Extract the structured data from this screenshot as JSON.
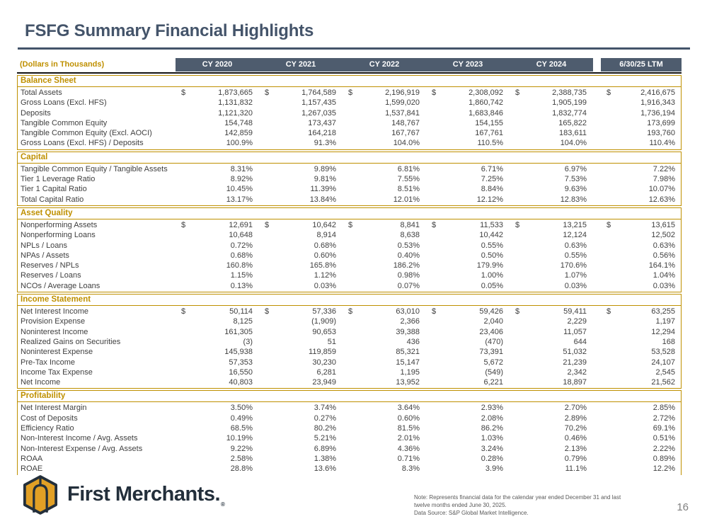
{
  "page": {
    "title": "FSFG Summary Financial Highlights",
    "page_number": "16"
  },
  "colors": {
    "title-navy": "#44546A",
    "accent-gold": "#BF9000",
    "header-slate": "#4E5C6E",
    "body-text": "#3F3F3F",
    "logo-navy": "#232F3B",
    "logo-gold": "#E2A025"
  },
  "table": {
    "corner_label": "(Dollars in Thousands)",
    "currency_symbol": "$",
    "columns": [
      "CY 2020",
      "CY 2021",
      "CY 2022",
      "CY 2023",
      "CY 2024",
      "6/30/25 LTM"
    ],
    "sections": [
      {
        "title": "Balance Sheet",
        "rows": [
          {
            "label": "Total Assets",
            "dollar": true,
            "values": [
              "1,873,665",
              "1,764,589",
              "2,196,919",
              "2,308,092",
              "2,388,735",
              "2,416,675"
            ]
          },
          {
            "label": "Gross Loans (Excl. HFS)",
            "values": [
              "1,131,832",
              "1,157,435",
              "1,599,020",
              "1,860,742",
              "1,905,199",
              "1,916,343"
            ]
          },
          {
            "label": "Deposits",
            "values": [
              "1,121,320",
              "1,267,035",
              "1,537,841",
              "1,683,846",
              "1,832,774",
              "1,736,194"
            ]
          },
          {
            "label": "Tangible Common Equity",
            "values": [
              "154,748",
              "173,437",
              "148,767",
              "154,155",
              "165,822",
              "173,699"
            ]
          },
          {
            "label": "Tangible Common Equity (Excl. AOCI)",
            "values": [
              "142,859",
              "164,218",
              "167,767",
              "167,761",
              "183,611",
              "193,760"
            ]
          },
          {
            "label": "Gross Loans (Excl. HFS) / Deposits",
            "values": [
              "100.9%",
              "91.3%",
              "104.0%",
              "110.5%",
              "104.0%",
              "110.4%"
            ]
          }
        ]
      },
      {
        "title": "Capital",
        "rows": [
          {
            "label": "Tangible Common Equity / Tangible Assets",
            "values": [
              "8.31%",
              "9.89%",
              "6.81%",
              "6.71%",
              "6.97%",
              "7.22%"
            ]
          },
          {
            "label": "Tier 1 Leverage Ratio",
            "values": [
              "8.92%",
              "9.81%",
              "7.55%",
              "7.25%",
              "7.53%",
              "7.98%"
            ]
          },
          {
            "label": "Tier 1 Capital Ratio",
            "values": [
              "10.45%",
              "11.39%",
              "8.51%",
              "8.84%",
              "9.63%",
              "10.07%"
            ]
          },
          {
            "label": "Total Capital Ratio",
            "values": [
              "13.17%",
              "13.84%",
              "12.01%",
              "12.12%",
              "12.83%",
              "12.63%"
            ]
          }
        ]
      },
      {
        "title": "Asset Quality",
        "rows": [
          {
            "label": "Nonperforming Assets",
            "dollar": true,
            "values": [
              "12,691",
              "10,642",
              "8,841",
              "11,533",
              "13,215",
              "13,615"
            ]
          },
          {
            "label": "Nonperforming Loans",
            "values": [
              "10,648",
              "8,914",
              "8,638",
              "10,442",
              "12,124",
              "12,502"
            ]
          },
          {
            "label": "NPLs / Loans",
            "values": [
              "0.72%",
              "0.68%",
              "0.53%",
              "0.55%",
              "0.63%",
              "0.63%"
            ]
          },
          {
            "label": "NPAs / Assets",
            "values": [
              "0.68%",
              "0.60%",
              "0.40%",
              "0.50%",
              "0.55%",
              "0.56%"
            ]
          },
          {
            "label": "Reserves / NPLs",
            "values": [
              "160.8%",
              "165.8%",
              "186.2%",
              "179.9%",
              "170.6%",
              "164.1%"
            ]
          },
          {
            "label": "Reserves / Loans",
            "values": [
              "1.15%",
              "1.12%",
              "0.98%",
              "1.00%",
              "1.07%",
              "1.04%"
            ]
          },
          {
            "label": "NCOs / Average Loans",
            "values": [
              "0.13%",
              "0.03%",
              "0.07%",
              "0.05%",
              "0.03%",
              "0.03%"
            ]
          }
        ]
      },
      {
        "title": "Income Statement",
        "rows": [
          {
            "label": "Net Interest Income",
            "dollar": true,
            "values": [
              "50,114",
              "57,336",
              "63,010",
              "59,426",
              "59,411",
              "63,255"
            ]
          },
          {
            "label": "Provision Expense",
            "values": [
              "8,125",
              "(1,909)",
              "2,366",
              "2,040",
              "2,229",
              "1,197"
            ]
          },
          {
            "label": "Noninterest Income",
            "values": [
              "161,305",
              "90,653",
              "39,388",
              "23,406",
              "11,057",
              "12,294"
            ]
          },
          {
            "label": "Realized Gains on Securities",
            "values": [
              "(3)",
              "51",
              "436",
              "(470)",
              "644",
              "168"
            ]
          },
          {
            "label": "Noninterest Expense",
            "values": [
              "145,938",
              "119,859",
              "85,321",
              "73,391",
              "51,032",
              "53,528"
            ]
          },
          {
            "label": "Pre-Tax Income",
            "values": [
              "57,353",
              "30,230",
              "15,147",
              "5,672",
              "21,239",
              "24,107"
            ]
          },
          {
            "label": "Income Tax Expense",
            "values": [
              "16,550",
              "6,281",
              "1,195",
              "(549)",
              "2,342",
              "2,545"
            ]
          },
          {
            "label": "Net Income",
            "values": [
              "40,803",
              "23,949",
              "13,952",
              "6,221",
              "18,897",
              "21,562"
            ]
          }
        ]
      },
      {
        "title": "Profitability",
        "rows": [
          {
            "label": "Net Interest Margin",
            "values": [
              "3.50%",
              "3.74%",
              "3.64%",
              "2.93%",
              "2.70%",
              "2.85%"
            ]
          },
          {
            "label": "Cost of Deposits",
            "values": [
              "0.49%",
              "0.27%",
              "0.60%",
              "2.08%",
              "2.89%",
              "2.72%"
            ]
          },
          {
            "label": "Efficiency Ratio",
            "values": [
              "68.5%",
              "80.2%",
              "81.5%",
              "86.2%",
              "70.2%",
              "69.1%"
            ]
          },
          {
            "label": "Non-Interest Income / Avg. Assets",
            "values": [
              "10.19%",
              "5.21%",
              "2.01%",
              "1.03%",
              "0.46%",
              "0.51%"
            ]
          },
          {
            "label": "Non-Interest Expense / Avg. Assets",
            "values": [
              "9.22%",
              "6.89%",
              "4.36%",
              "3.24%",
              "2.13%",
              "2.22%"
            ]
          },
          {
            "label": "ROAA",
            "values": [
              "2.58%",
              "1.38%",
              "0.71%",
              "0.28%",
              "0.79%",
              "0.89%"
            ]
          },
          {
            "label": "ROAE",
            "values": [
              "28.8%",
              "13.6%",
              "8.3%",
              "3.9%",
              "11.1%",
              "12.2%"
            ]
          }
        ]
      }
    ]
  },
  "footer": {
    "logo_text": "First Merchants.",
    "logo_reg": "®",
    "note_lines": [
      "Note: Represents financial data for the calendar year ended December 31 and last",
      "twelve months ended June 30, 2025."
    ],
    "source_line": "Data Source: S&P Global Market Intelligence.",
    "page_number": "16"
  }
}
